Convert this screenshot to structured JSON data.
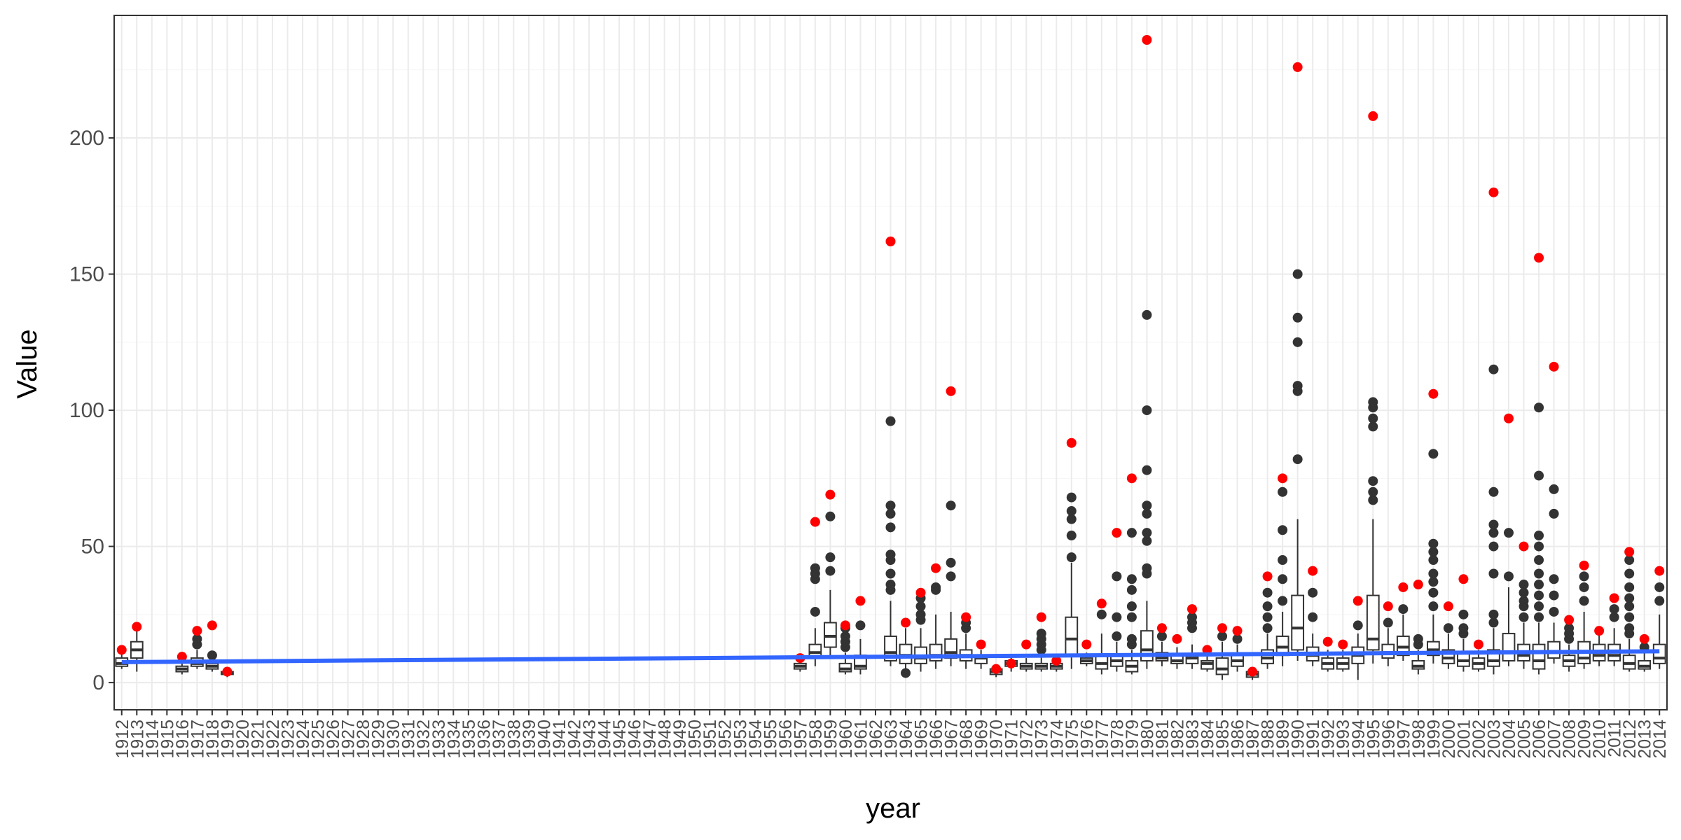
{
  "chart_data": {
    "type": "box",
    "xlabel": "year",
    "ylabel": "Value",
    "ylim": [
      -10,
      245
    ],
    "yticks": [
      0,
      50,
      100,
      150,
      200
    ],
    "x_categories": [
      1912,
      2014
    ],
    "grid": true,
    "colors": {
      "box": "#333333",
      "max_point": "#ff0000",
      "trend": "#3366ff",
      "grid_major": "#ebebeb",
      "grid_minor": "#f5f5f5",
      "panel_border": "#333333"
    },
    "trend": {
      "method": "linear",
      "x": [
        1912,
        2014
      ],
      "y": [
        7.5,
        11.5
      ]
    },
    "boxes": [
      {
        "year": 1912,
        "min": 5,
        "q1": 6,
        "median": 7,
        "q3": 9,
        "max": 12,
        "outliers": [],
        "red": 12
      },
      {
        "year": 1913,
        "min": 4,
        "q1": 9,
        "median": 12,
        "q3": 15,
        "max": 20,
        "outliers": [],
        "red": 20.5
      },
      {
        "year": 1916,
        "min": 3,
        "q1": 4,
        "median": 5,
        "q3": 6,
        "max": 9,
        "outliers": [],
        "red": 9.5
      },
      {
        "year": 1917,
        "min": 5,
        "q1": 6,
        "median": 7,
        "q3": 9,
        "max": 12,
        "outliers": [
          14,
          16
        ],
        "red": 19
      },
      {
        "year": 1918,
        "min": 4,
        "q1": 5,
        "median": 6,
        "q3": 7,
        "max": 9,
        "outliers": [
          10
        ],
        "red": 21
      },
      {
        "year": 1919,
        "min": 2,
        "q1": 3,
        "median": 3.5,
        "q3": 4,
        "max": 4.5,
        "outliers": [],
        "red": 4
      },
      {
        "year": 1957,
        "min": 4,
        "q1": 5,
        "median": 6,
        "q3": 7,
        "max": 8,
        "outliers": [],
        "red": 9
      },
      {
        "year": 1958,
        "min": 6,
        "q1": 9,
        "median": 11,
        "q3": 14,
        "max": 20,
        "outliers": [
          26,
          38,
          40,
          42
        ],
        "red": 59
      },
      {
        "year": 1959,
        "min": 10,
        "q1": 13,
        "median": 17,
        "q3": 22,
        "max": 34,
        "outliers": [
          41,
          46,
          61
        ],
        "red": 69
      },
      {
        "year": 1960,
        "min": 3,
        "q1": 4,
        "median": 5,
        "q3": 7,
        "max": 11,
        "outliers": [
          13,
          15,
          17,
          20
        ],
        "red": 21
      },
      {
        "year": 1961,
        "min": 3,
        "q1": 5,
        "median": 6,
        "q3": 10,
        "max": 16,
        "outliers": [
          21
        ],
        "red": 30
      },
      {
        "year": 1963,
        "min": 6,
        "q1": 8,
        "median": 11,
        "q3": 17,
        "max": 30,
        "outliers": [
          34,
          36,
          40,
          45,
          47,
          57,
          62,
          65,
          96
        ],
        "red": 162
      },
      {
        "year": 1964,
        "min": 3,
        "q1": 7,
        "median": 10,
        "q3": 14,
        "max": 20,
        "outliers": [
          3.5
        ],
        "red": 22
      },
      {
        "year": 1965,
        "min": 4,
        "q1": 7,
        "median": 9,
        "q3": 13,
        "max": 20,
        "outliers": [
          23,
          25,
          28,
          31
        ],
        "red": 33
      },
      {
        "year": 1966,
        "min": 5,
        "q1": 8,
        "median": 10,
        "q3": 14,
        "max": 25,
        "outliers": [
          34,
          35
        ],
        "red": 42
      },
      {
        "year": 1967,
        "min": 6,
        "q1": 9,
        "median": 11,
        "q3": 16,
        "max": 26,
        "outliers": [
          39,
          44,
          65
        ],
        "red": 107
      },
      {
        "year": 1968,
        "min": 5,
        "q1": 8,
        "median": 10,
        "q3": 12,
        "max": 18,
        "outliers": [
          20,
          22
        ],
        "red": 24
      },
      {
        "year": 1969,
        "min": 5,
        "q1": 7,
        "median": 9,
        "q3": 10,
        "max": 12,
        "outliers": [],
        "red": 14
      },
      {
        "year": 1970,
        "min": 2,
        "q1": 3,
        "median": 4,
        "q3": 5,
        "max": 6,
        "outliers": [],
        "red": 5
      },
      {
        "year": 1971,
        "min": 4,
        "q1": 6,
        "median": 7,
        "q3": 8,
        "max": 10,
        "outliers": [],
        "red": 7
      },
      {
        "year": 1972,
        "min": 4,
        "q1": 5,
        "median": 6,
        "q3": 7,
        "max": 9,
        "outliers": [],
        "red": 14
      },
      {
        "year": 1973,
        "min": 4,
        "q1": 5,
        "median": 6,
        "q3": 7,
        "max": 10,
        "outliers": [
          12,
          14,
          16,
          18
        ],
        "red": 24
      },
      {
        "year": 1974,
        "min": 4,
        "q1": 5,
        "median": 6,
        "q3": 7,
        "max": 8,
        "outliers": [],
        "red": 8
      },
      {
        "year": 1975,
        "min": 5,
        "q1": 10,
        "median": 16,
        "q3": 24,
        "max": 44,
        "outliers": [
          46,
          54,
          60,
          63,
          68
        ],
        "red": 88
      },
      {
        "year": 1976,
        "min": 6,
        "q1": 7,
        "median": 8,
        "q3": 9,
        "max": 11,
        "outliers": [],
        "red": 14
      },
      {
        "year": 1977,
        "min": 3,
        "q1": 5,
        "median": 7,
        "q3": 10,
        "max": 18,
        "outliers": [
          25
        ],
        "red": 29
      },
      {
        "year": 1978,
        "min": 4,
        "q1": 6,
        "median": 8,
        "q3": 10,
        "max": 15,
        "outliers": [
          17,
          24,
          39
        ],
        "red": 55
      },
      {
        "year": 1979,
        "min": 3,
        "q1": 4,
        "median": 6,
        "q3": 8,
        "max": 12,
        "outliers": [
          14,
          16,
          24,
          28,
          34,
          38,
          55
        ],
        "red": 75
      },
      {
        "year": 1980,
        "min": 5,
        "q1": 8,
        "median": 12,
        "q3": 19,
        "max": 30,
        "outliers": [
          40,
          42,
          52,
          55,
          62,
          65,
          78,
          100,
          135
        ],
        "red": 236
      },
      {
        "year": 1981,
        "min": 6,
        "q1": 8,
        "median": 9,
        "q3": 11,
        "max": 15,
        "outliers": [
          17
        ],
        "red": 20
      },
      {
        "year": 1982,
        "min": 5,
        "q1": 7,
        "median": 8,
        "q3": 10,
        "max": 13,
        "outliers": [],
        "red": 16
      },
      {
        "year": 1983,
        "min": 5,
        "q1": 7,
        "median": 9,
        "q3": 10,
        "max": 14,
        "outliers": [
          20,
          22,
          24
        ],
        "red": 27
      },
      {
        "year": 1984,
        "min": 4,
        "q1": 5,
        "median": 7,
        "q3": 8,
        "max": 10,
        "outliers": [],
        "red": 12
      },
      {
        "year": 1985,
        "min": 1,
        "q1": 3,
        "median": 5,
        "q3": 9,
        "max": 15,
        "outliers": [
          17
        ],
        "red": 20
      },
      {
        "year": 1986,
        "min": 4,
        "q1": 6,
        "median": 8,
        "q3": 10,
        "max": 14,
        "outliers": [
          16
        ],
        "red": 19
      },
      {
        "year": 1987,
        "min": 1,
        "q1": 2,
        "median": 3,
        "q3": 4,
        "max": 5,
        "outliers": [],
        "red": 4
      },
      {
        "year": 1988,
        "min": 5,
        "q1": 7,
        "median": 9,
        "q3": 12,
        "max": 18,
        "outliers": [
          20,
          24,
          28,
          33
        ],
        "red": 39
      },
      {
        "year": 1989,
        "min": 6,
        "q1": 10,
        "median": 13,
        "q3": 17,
        "max": 26,
        "outliers": [
          30,
          38,
          45,
          56,
          70
        ],
        "red": 75
      },
      {
        "year": 1990,
        "min": 8,
        "q1": 12,
        "median": 20,
        "q3": 32,
        "max": 60,
        "outliers": [
          82,
          107,
          109,
          125,
          134,
          150
        ],
        "red": 226
      },
      {
        "year": 1991,
        "min": 6,
        "q1": 8,
        "median": 10,
        "q3": 13,
        "max": 18,
        "outliers": [
          24,
          33
        ],
        "red": 41
      },
      {
        "year": 1992,
        "min": 4,
        "q1": 5,
        "median": 7,
        "q3": 9,
        "max": 12,
        "outliers": [],
        "red": 15
      },
      {
        "year": 1993,
        "min": 4,
        "q1": 5,
        "median": 7,
        "q3": 9,
        "max": 12,
        "outliers": [],
        "red": 14
      },
      {
        "year": 1994,
        "min": 1,
        "q1": 7,
        "median": 10,
        "q3": 13,
        "max": 18,
        "outliers": [
          21
        ],
        "red": 30
      },
      {
        "year": 1995,
        "min": 7,
        "q1": 12,
        "median": 16,
        "q3": 32,
        "max": 60,
        "outliers": [
          67,
          70,
          74,
          94,
          97,
          101,
          103
        ],
        "red": 208
      },
      {
        "year": 1996,
        "min": 6,
        "q1": 9,
        "median": 11,
        "q3": 14,
        "max": 20,
        "outliers": [
          22
        ],
        "red": 28
      },
      {
        "year": 1997,
        "min": 8,
        "q1": 10,
        "median": 13,
        "q3": 17,
        "max": 25,
        "outliers": [
          27
        ],
        "red": 35
      },
      {
        "year": 1998,
        "min": 3,
        "q1": 5,
        "median": 6,
        "q3": 8,
        "max": 12,
        "outliers": [
          14,
          16
        ],
        "red": 36
      },
      {
        "year": 1999,
        "min": 7,
        "q1": 10,
        "median": 12,
        "q3": 15,
        "max": 25,
        "outliers": [
          28,
          33,
          37,
          40,
          45,
          48,
          51,
          84
        ],
        "red": 106
      },
      {
        "year": 2000,
        "min": 5,
        "q1": 7,
        "median": 9,
        "q3": 12,
        "max": 18,
        "outliers": [
          20
        ],
        "red": 28
      },
      {
        "year": 2001,
        "min": 4,
        "q1": 6,
        "median": 8,
        "q3": 11,
        "max": 16,
        "outliers": [
          18,
          20,
          25
        ],
        "red": 38
      },
      {
        "year": 2002,
        "min": 4,
        "q1": 5,
        "median": 7,
        "q3": 9,
        "max": 12,
        "outliers": [],
        "red": 14
      },
      {
        "year": 2003,
        "min": 3,
        "q1": 6,
        "median": 8,
        "q3": 12,
        "max": 20,
        "outliers": [
          22,
          25,
          40,
          50,
          55,
          58,
          70,
          115
        ],
        "red": 180
      },
      {
        "year": 2004,
        "min": 6,
        "q1": 8,
        "median": 11,
        "q3": 18,
        "max": 35,
        "outliers": [
          39,
          55
        ],
        "red": 97
      },
      {
        "year": 2005,
        "min": 5,
        "q1": 8,
        "median": 10,
        "q3": 14,
        "max": 22,
        "outliers": [
          24,
          28,
          30,
          33,
          36
        ],
        "red": 50
      },
      {
        "year": 2006,
        "min": 3,
        "q1": 5,
        "median": 8,
        "q3": 14,
        "max": 22,
        "outliers": [
          24,
          28,
          32,
          36,
          40,
          45,
          50,
          54,
          76,
          101
        ],
        "red": 156
      },
      {
        "year": 2007,
        "min": 7,
        "q1": 9,
        "median": 11,
        "q3": 15,
        "max": 22,
        "outliers": [
          26,
          32,
          38,
          62,
          71
        ],
        "red": 116
      },
      {
        "year": 2008,
        "min": 4,
        "q1": 6,
        "median": 8,
        "q3": 10,
        "max": 14,
        "outliers": [
          16,
          18,
          20
        ],
        "red": 23
      },
      {
        "year": 2009,
        "min": 5,
        "q1": 7,
        "median": 9,
        "q3": 15,
        "max": 26,
        "outliers": [
          30,
          35,
          39
        ],
        "red": 43
      },
      {
        "year": 2010,
        "min": 6,
        "q1": 8,
        "median": 10,
        "q3": 14,
        "max": 18,
        "outliers": [],
        "red": 19
      },
      {
        "year": 2011,
        "min": 6,
        "q1": 8,
        "median": 10,
        "q3": 14,
        "max": 20,
        "outliers": [
          24,
          27
        ],
        "red": 31
      },
      {
        "year": 2012,
        "min": 4,
        "q1": 5,
        "median": 7,
        "q3": 10,
        "max": 16,
        "outliers": [
          18,
          20,
          24,
          28,
          31,
          35,
          40,
          45
        ],
        "red": 48
      },
      {
        "year": 2013,
        "min": 4,
        "q1": 5,
        "median": 6,
        "q3": 8,
        "max": 12,
        "outliers": [
          13
        ],
        "red": 16
      },
      {
        "year": 2014,
        "min": 5,
        "q1": 7,
        "median": 9,
        "q3": 14,
        "max": 25,
        "outliers": [
          30,
          35
        ],
        "red": 41
      }
    ]
  }
}
